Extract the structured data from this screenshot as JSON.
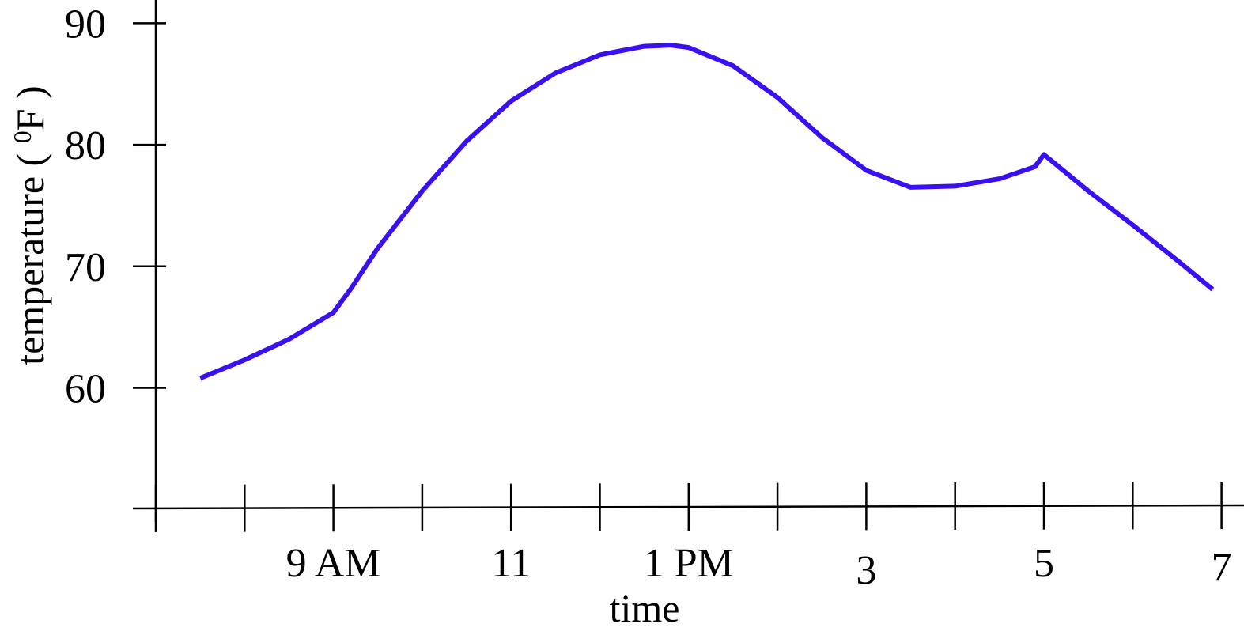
{
  "chart_data": {
    "type": "line",
    "title": "",
    "xlabel": "time",
    "ylabel": "temperature ( ⁰F )",
    "ylabel_parts": {
      "prefix": "temperature ( ",
      "sup": "0",
      "unit": "F )"
    },
    "xlim": [
      6.5,
      19
    ],
    "ylim": [
      50,
      92
    ],
    "grid": false,
    "legend": "none",
    "x_ticks": [
      6.5,
      7.5,
      8.5,
      9.5,
      10.5,
      11.5,
      12.5,
      13.5,
      14.5,
      15.5,
      16.5,
      17.5,
      18.5
    ],
    "x_tick_labels": [
      {
        "x": 8.5,
        "label": "9 AM"
      },
      {
        "x": 10.5,
        "label": "11"
      },
      {
        "x": 12.5,
        "label": "1 PM"
      },
      {
        "x": 14.5,
        "label": "3"
      },
      {
        "x": 16.5,
        "label": "5"
      },
      {
        "x": 18.5,
        "label": "7"
      }
    ],
    "y_ticks": [
      60,
      70,
      80,
      90
    ],
    "y_tick_labels": [
      "60",
      "70",
      "80",
      "90"
    ],
    "series": [
      {
        "color": "#3a10f0",
        "x": [
          7.0,
          7.5,
          8.0,
          8.5,
          8.7,
          9.0,
          9.5,
          10.0,
          10.5,
          11.0,
          11.5,
          12.0,
          12.3,
          12.5,
          13.0,
          13.5,
          14.0,
          14.5,
          15.0,
          15.5,
          16.0,
          16.4,
          16.5,
          17.0,
          17.5,
          18.0,
          18.4
        ],
        "y": [
          60.8,
          62.3,
          64.0,
          66.2,
          68.2,
          71.5,
          76.2,
          80.3,
          83.6,
          85.9,
          87.4,
          88.1,
          88.2,
          88.0,
          86.5,
          83.9,
          80.6,
          77.9,
          76.5,
          76.6,
          77.2,
          78.2,
          79.2,
          76.2,
          73.4,
          70.5,
          68.1
        ]
      }
    ]
  }
}
